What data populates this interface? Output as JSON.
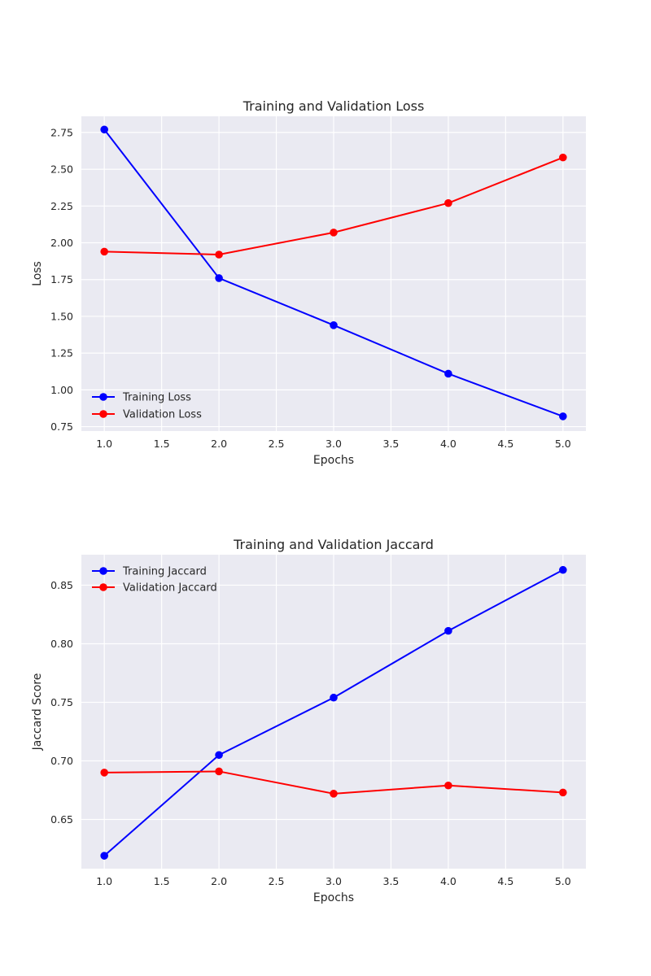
{
  "chart_data": [
    {
      "type": "line",
      "title": "Training and Validation Loss",
      "xlabel": "Epochs",
      "ylabel": "Loss",
      "x": [
        1,
        2,
        3,
        4,
        5
      ],
      "xlim": [
        0.8,
        5.2
      ],
      "ylim": [
        0.72,
        2.86
      ],
      "xticks": [
        "1.0",
        "1.5",
        "2.0",
        "2.5",
        "3.0",
        "3.5",
        "4.0",
        "4.5",
        "5.0"
      ],
      "yticks": [
        "0.75",
        "1.00",
        "1.25",
        "1.50",
        "1.75",
        "2.00",
        "2.25",
        "2.50",
        "2.75"
      ],
      "grid": true,
      "legend_position": "lower-left",
      "series": [
        {
          "name": "Training Loss",
          "color": "#0000ff",
          "marker": "circle",
          "values": [
            2.77,
            1.76,
            1.44,
            1.11,
            0.82
          ]
        },
        {
          "name": "Validation Loss",
          "color": "#ff0000",
          "marker": "circle",
          "values": [
            1.94,
            1.92,
            2.07,
            2.27,
            2.58
          ]
        }
      ]
    },
    {
      "type": "line",
      "title": "Training and Validation Jaccard",
      "xlabel": "Epochs",
      "ylabel": "Jaccard Score",
      "x": [
        1,
        2,
        3,
        4,
        5
      ],
      "xlim": [
        0.8,
        5.2
      ],
      "ylim": [
        0.608,
        0.876
      ],
      "xticks": [
        "1.0",
        "1.5",
        "2.0",
        "2.5",
        "3.0",
        "3.5",
        "4.0",
        "4.5",
        "5.0"
      ],
      "yticks": [
        "0.65",
        "0.70",
        "0.75",
        "0.80",
        "0.85"
      ],
      "grid": true,
      "legend_position": "upper-left",
      "series": [
        {
          "name": "Training Jaccard",
          "color": "#0000ff",
          "marker": "circle",
          "values": [
            0.619,
            0.705,
            0.754,
            0.811,
            0.863
          ]
        },
        {
          "name": "Validation Jaccard",
          "color": "#ff0000",
          "marker": "circle",
          "values": [
            0.69,
            0.691,
            0.672,
            0.679,
            0.673
          ]
        }
      ]
    }
  ]
}
